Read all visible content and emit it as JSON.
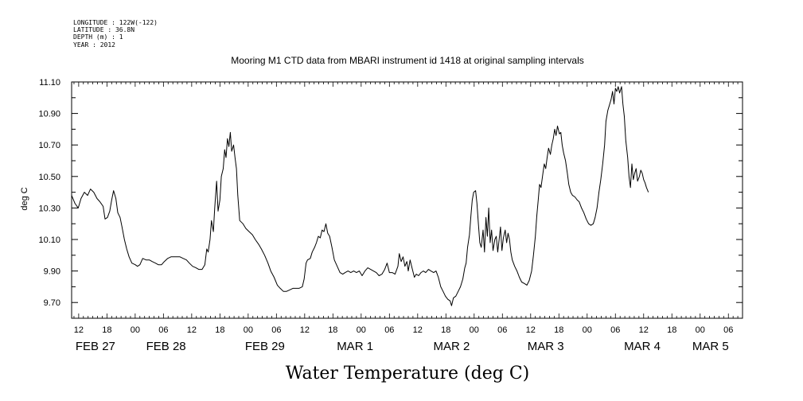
{
  "header": {
    "longitude": "LONGITUDE : 122W(-122)",
    "latitude": "LATITUDE : 36.8N",
    "depth": "DEPTH (m) : 1",
    "year": "YEAR : 2012"
  },
  "chart_data": {
    "type": "line",
    "title": "Mooring M1 CTD data from MBARI instrument id 1418 at original sampling intervals",
    "xlabel": "Water Temperature (deg C)",
    "ylabel": "deg C",
    "x_unit": "hours since 2012-02-27 00:00",
    "xlim": [
      10.5,
      153
    ],
    "ylim": [
      9.6,
      11.1
    ],
    "yticks": [
      "9.70",
      "9.90",
      "10.10",
      "10.30",
      "10.50",
      "10.70",
      "10.90",
      "11.10"
    ],
    "ytick_values": [
      9.7,
      9.9,
      10.1,
      10.3,
      10.5,
      10.7,
      10.9,
      11.1
    ],
    "xtick_hours": [
      "12",
      "18",
      "00",
      "06",
      "12",
      "18",
      "00",
      "06",
      "12",
      "18",
      "00",
      "06",
      "12",
      "18",
      "00",
      "06",
      "12",
      "18",
      "00",
      "06",
      "12",
      "18",
      "00",
      "06",
      "12",
      "18",
      "00",
      "06"
    ],
    "xtick_hour_values": [
      12,
      18,
      24,
      30,
      36,
      42,
      48,
      54,
      60,
      66,
      72,
      78,
      84,
      90,
      96,
      102,
      108,
      114,
      120,
      126,
      132,
      138,
      144,
      150,
      156,
      162,
      168,
      174
    ],
    "day_labels": [
      "FEB 27",
      "FEB 28",
      "FEB 29",
      "MAR  1",
      "MAR  2",
      "MAR  3",
      "MAR  4",
      "MAR  5"
    ],
    "day_label_values": [
      12,
      27,
      48,
      67.5,
      88,
      108,
      128.5,
      143
    ],
    "grid": false,
    "series": [
      {
        "color": "#000000",
        "points": [
          [
            10.5,
            10.38
          ],
          [
            11.2,
            10.33
          ],
          [
            11.9,
            10.3
          ],
          [
            12.5,
            10.36
          ],
          [
            13.2,
            10.4
          ],
          [
            13.9,
            10.38
          ],
          [
            14.5,
            10.42
          ],
          [
            15.2,
            10.4
          ],
          [
            15.9,
            10.36
          ],
          [
            16.5,
            10.34
          ],
          [
            17.2,
            10.31
          ],
          [
            17.6,
            10.23
          ],
          [
            18.1,
            10.24
          ],
          [
            18.6,
            10.28
          ],
          [
            19.0,
            10.35
          ],
          [
            19.4,
            10.41
          ],
          [
            19.9,
            10.36
          ],
          [
            20.3,
            10.27
          ],
          [
            20.8,
            10.24
          ],
          [
            21.2,
            10.18
          ],
          [
            21.7,
            10.1
          ],
          [
            22.2,
            10.04
          ],
          [
            22.7,
            9.99
          ],
          [
            23.3,
            9.95
          ],
          [
            24.0,
            9.94
          ],
          [
            24.5,
            9.93
          ],
          [
            25.0,
            9.94
          ],
          [
            25.6,
            9.98
          ],
          [
            26.3,
            9.97
          ],
          [
            27.0,
            9.97
          ],
          [
            27.6,
            9.96
          ],
          [
            28.3,
            9.95
          ],
          [
            28.9,
            9.94
          ],
          [
            29.6,
            9.94
          ],
          [
            30.2,
            9.96
          ],
          [
            30.9,
            9.98
          ],
          [
            31.6,
            9.99
          ],
          [
            32.2,
            9.99
          ],
          [
            32.9,
            9.99
          ],
          [
            33.5,
            9.99
          ],
          [
            34.2,
            9.98
          ],
          [
            34.9,
            9.97
          ],
          [
            35.5,
            9.95
          ],
          [
            36.2,
            9.93
          ],
          [
            36.9,
            9.92
          ],
          [
            37.5,
            9.91
          ],
          [
            38.2,
            9.91
          ],
          [
            38.8,
            9.94
          ],
          [
            39.2,
            10.04
          ],
          [
            39.5,
            10.02
          ],
          [
            39.9,
            10.1
          ],
          [
            40.2,
            10.22
          ],
          [
            40.6,
            10.15
          ],
          [
            40.9,
            10.3
          ],
          [
            41.3,
            10.47
          ],
          [
            41.6,
            10.28
          ],
          [
            42.0,
            10.35
          ],
          [
            42.3,
            10.5
          ],
          [
            42.7,
            10.55
          ],
          [
            43.0,
            10.67
          ],
          [
            43.3,
            10.62
          ],
          [
            43.6,
            10.74
          ],
          [
            43.9,
            10.69
          ],
          [
            44.2,
            10.78
          ],
          [
            44.5,
            10.66
          ],
          [
            44.9,
            10.7
          ],
          [
            45.2,
            10.62
          ],
          [
            45.5,
            10.55
          ],
          [
            45.8,
            10.38
          ],
          [
            46.2,
            10.22
          ],
          [
            46.9,
            10.2
          ],
          [
            47.5,
            10.17
          ],
          [
            48.2,
            10.15
          ],
          [
            48.9,
            10.13
          ],
          [
            49.5,
            10.1
          ],
          [
            50.2,
            10.07
          ],
          [
            50.8,
            10.04
          ],
          [
            51.5,
            10.0
          ],
          [
            52.2,
            9.95
          ],
          [
            52.8,
            9.9
          ],
          [
            53.5,
            9.86
          ],
          [
            54.2,
            9.81
          ],
          [
            54.8,
            9.79
          ],
          [
            55.5,
            9.77
          ],
          [
            56.1,
            9.77
          ],
          [
            56.8,
            9.78
          ],
          [
            57.5,
            9.79
          ],
          [
            58.1,
            9.79
          ],
          [
            58.8,
            9.79
          ],
          [
            59.5,
            9.8
          ],
          [
            59.9,
            9.85
          ],
          [
            60.3,
            9.95
          ],
          [
            60.6,
            9.97
          ],
          [
            61.2,
            9.98
          ],
          [
            61.6,
            10.02
          ],
          [
            62.1,
            10.05
          ],
          [
            62.5,
            10.08
          ],
          [
            62.9,
            10.12
          ],
          [
            63.3,
            10.11
          ],
          [
            63.7,
            10.16
          ],
          [
            64.1,
            10.15
          ],
          [
            64.5,
            10.2
          ],
          [
            64.9,
            10.14
          ],
          [
            65.3,
            10.12
          ],
          [
            65.8,
            10.05
          ],
          [
            66.3,
            9.97
          ],
          [
            66.9,
            9.93
          ],
          [
            67.5,
            9.89
          ],
          [
            68.1,
            9.88
          ],
          [
            68.6,
            9.89
          ],
          [
            69.2,
            9.9
          ],
          [
            69.8,
            9.89
          ],
          [
            70.4,
            9.9
          ],
          [
            71.0,
            9.89
          ],
          [
            71.6,
            9.9
          ],
          [
            72.2,
            9.87
          ],
          [
            72.8,
            9.9
          ],
          [
            73.4,
            9.92
          ],
          [
            74.0,
            9.91
          ],
          [
            74.6,
            9.9
          ],
          [
            75.2,
            9.89
          ],
          [
            75.8,
            9.87
          ],
          [
            76.4,
            9.88
          ],
          [
            77.0,
            9.91
          ],
          [
            77.5,
            9.95
          ],
          [
            78.0,
            9.89
          ],
          [
            78.6,
            9.89
          ],
          [
            79.2,
            9.88
          ],
          [
            79.8,
            9.93
          ],
          [
            80.1,
            10.01
          ],
          [
            80.5,
            9.96
          ],
          [
            80.9,
            9.99
          ],
          [
            81.3,
            9.93
          ],
          [
            81.7,
            9.96
          ],
          [
            82.0,
            9.9
          ],
          [
            82.4,
            9.97
          ],
          [
            82.8,
            9.92
          ],
          [
            83.3,
            9.86
          ],
          [
            83.7,
            9.88
          ],
          [
            84.2,
            9.87
          ],
          [
            84.7,
            9.89
          ],
          [
            85.2,
            9.9
          ],
          [
            85.7,
            9.89
          ],
          [
            86.3,
            9.91
          ],
          [
            86.8,
            9.9
          ],
          [
            87.4,
            9.89
          ],
          [
            87.9,
            9.9
          ],
          [
            88.4,
            9.86
          ],
          [
            88.9,
            9.8
          ],
          [
            89.4,
            9.77
          ],
          [
            89.9,
            9.74
          ],
          [
            90.4,
            9.72
          ],
          [
            90.9,
            9.71
          ],
          [
            91.2,
            9.68
          ],
          [
            91.6,
            9.73
          ],
          [
            92.1,
            9.74
          ],
          [
            92.6,
            9.77
          ],
          [
            93.1,
            9.8
          ],
          [
            93.6,
            9.85
          ],
          [
            94.0,
            9.92
          ],
          [
            94.3,
            9.95
          ],
          [
            94.6,
            10.05
          ],
          [
            95.0,
            10.13
          ],
          [
            95.3,
            10.25
          ],
          [
            95.6,
            10.35
          ],
          [
            95.9,
            10.4
          ],
          [
            96.3,
            10.41
          ],
          [
            96.6,
            10.33
          ],
          [
            96.9,
            10.2
          ],
          [
            97.2,
            10.08
          ],
          [
            97.5,
            10.05
          ],
          [
            97.9,
            10.16
          ],
          [
            98.2,
            10.02
          ],
          [
            98.5,
            10.24
          ],
          [
            98.8,
            10.12
          ],
          [
            99.1,
            10.3
          ],
          [
            99.4,
            10.08
          ],
          [
            99.7,
            10.16
          ],
          [
            100.0,
            10.03
          ],
          [
            100.4,
            10.1
          ],
          [
            100.7,
            10.12
          ],
          [
            101.0,
            10.02
          ],
          [
            101.3,
            10.1
          ],
          [
            101.6,
            10.18
          ],
          [
            101.9,
            10.03
          ],
          [
            102.2,
            10.11
          ],
          [
            102.6,
            10.16
          ],
          [
            102.9,
            10.08
          ],
          [
            103.2,
            10.14
          ],
          [
            103.5,
            10.1
          ],
          [
            103.8,
            10.02
          ],
          [
            104.1,
            9.97
          ],
          [
            104.6,
            9.93
          ],
          [
            105.1,
            9.9
          ],
          [
            105.6,
            9.86
          ],
          [
            106.1,
            9.83
          ],
          [
            106.7,
            9.82
          ],
          [
            107.2,
            9.81
          ],
          [
            107.7,
            9.84
          ],
          [
            108.2,
            9.9
          ],
          [
            108.6,
            10.0
          ],
          [
            109.0,
            10.12
          ],
          [
            109.3,
            10.25
          ],
          [
            109.6,
            10.35
          ],
          [
            109.9,
            10.45
          ],
          [
            110.2,
            10.43
          ],
          [
            110.6,
            10.52
          ],
          [
            110.9,
            10.58
          ],
          [
            111.2,
            10.55
          ],
          [
            111.5,
            10.62
          ],
          [
            111.8,
            10.68
          ],
          [
            112.2,
            10.64
          ],
          [
            112.5,
            10.7
          ],
          [
            112.8,
            10.74
          ],
          [
            113.1,
            10.8
          ],
          [
            113.4,
            10.76
          ],
          [
            113.7,
            10.82
          ],
          [
            114.1,
            10.77
          ],
          [
            114.4,
            10.78
          ],
          [
            114.7,
            10.7
          ],
          [
            115.0,
            10.65
          ],
          [
            115.4,
            10.6
          ],
          [
            115.8,
            10.52
          ],
          [
            116.1,
            10.45
          ],
          [
            116.5,
            10.4
          ],
          [
            116.9,
            10.38
          ],
          [
            117.4,
            10.37
          ],
          [
            117.9,
            10.35
          ],
          [
            118.3,
            10.34
          ],
          [
            118.8,
            10.3
          ],
          [
            119.3,
            10.27
          ],
          [
            119.8,
            10.23
          ],
          [
            120.3,
            10.2
          ],
          [
            120.8,
            10.19
          ],
          [
            121.3,
            10.2
          ],
          [
            121.7,
            10.24
          ],
          [
            122.1,
            10.3
          ],
          [
            122.5,
            10.4
          ],
          [
            122.9,
            10.48
          ],
          [
            123.3,
            10.58
          ],
          [
            123.7,
            10.7
          ],
          [
            124.0,
            10.85
          ],
          [
            124.4,
            10.92
          ],
          [
            124.7,
            10.95
          ],
          [
            125.1,
            10.99
          ],
          [
            125.4,
            11.04
          ],
          [
            125.7,
            10.96
          ],
          [
            126.0,
            11.06
          ],
          [
            126.3,
            11.04
          ],
          [
            126.6,
            11.07
          ],
          [
            126.9,
            11.03
          ],
          [
            127.3,
            11.07
          ],
          [
            127.6,
            10.96
          ],
          [
            127.9,
            10.88
          ],
          [
            128.2,
            10.73
          ],
          [
            128.6,
            10.62
          ],
          [
            128.9,
            10.5
          ],
          [
            129.2,
            10.43
          ],
          [
            129.5,
            10.58
          ],
          [
            129.8,
            10.48
          ],
          [
            130.1,
            10.52
          ],
          [
            130.4,
            10.55
          ],
          [
            130.7,
            10.47
          ],
          [
            131.1,
            10.5
          ],
          [
            131.4,
            10.54
          ],
          [
            131.7,
            10.52
          ],
          [
            132.0,
            10.48
          ],
          [
            132.3,
            10.46
          ],
          [
            132.6,
            10.43
          ],
          [
            133.0,
            10.4
          ]
        ]
      }
    ]
  }
}
